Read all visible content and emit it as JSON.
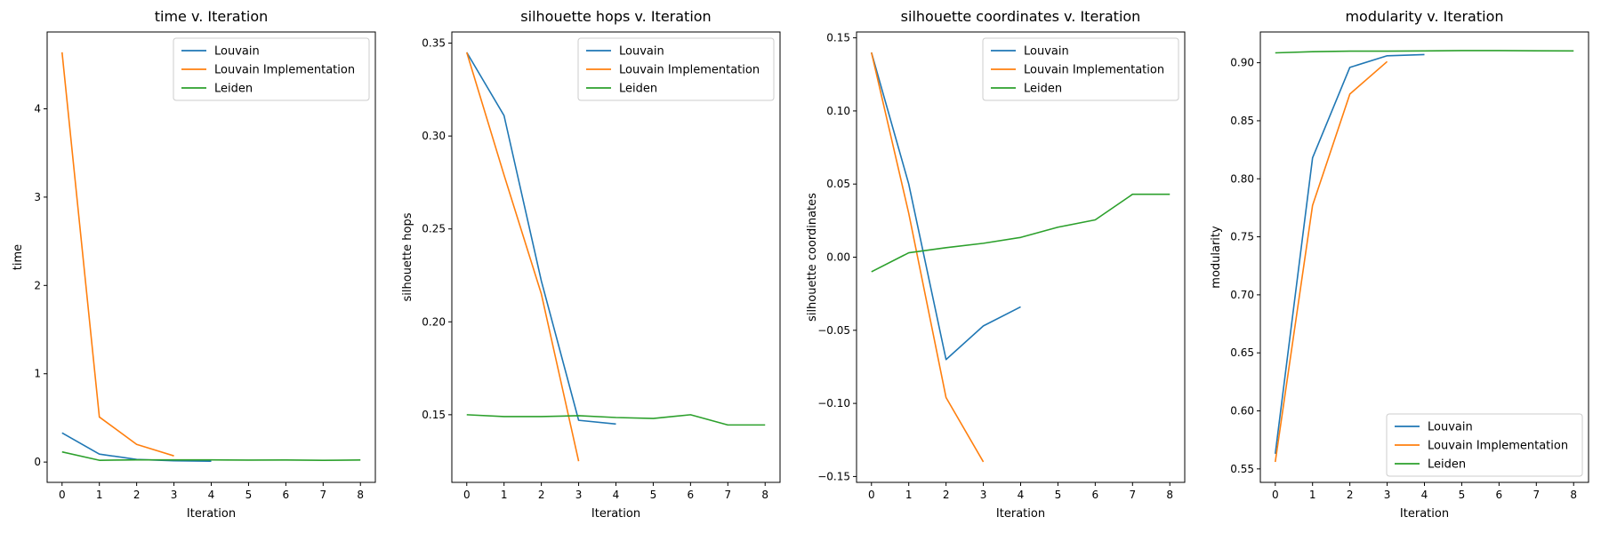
{
  "chart_data": [
    {
      "type": "line",
      "title": "time v. Iteration",
      "xlabel": "Iteration",
      "ylabel": "time",
      "xlim": [
        -0.4,
        8.4
      ],
      "ylim": [
        -0.23,
        4.87
      ],
      "xticks": [
        0,
        1,
        2,
        3,
        4,
        5,
        6,
        7,
        8
      ],
      "yticks": [
        0,
        1,
        2,
        3,
        4
      ],
      "yticklabels": [
        "0",
        "1",
        "2",
        "3",
        "4"
      ],
      "legend": "top-right",
      "series": [
        {
          "name": "Louvain",
          "color": "#1f77b4",
          "x": [
            0,
            1,
            2,
            3,
            4
          ],
          "y": [
            0.33,
            0.09,
            0.03,
            0.015,
            0.01
          ]
        },
        {
          "name": "Louvain Implementation",
          "color": "#ff7f0e",
          "x": [
            0,
            1,
            2,
            3
          ],
          "y": [
            4.64,
            0.51,
            0.2,
            0.07
          ]
        },
        {
          "name": "Leiden",
          "color": "#2ca02c",
          "x": [
            0,
            1,
            2,
            3,
            4,
            5,
            6,
            7,
            8
          ],
          "y": [
            0.115,
            0.02,
            0.025,
            0.025,
            0.025,
            0.022,
            0.023,
            0.02,
            0.023
          ]
        }
      ]
    },
    {
      "type": "line",
      "title": "silhouette hops v. Iteration",
      "xlabel": "Iteration",
      "ylabel": "silhouette hops",
      "xlim": [
        -0.4,
        8.4
      ],
      "ylim": [
        0.1136,
        0.356
      ],
      "xticks": [
        0,
        1,
        2,
        3,
        4,
        5,
        6,
        7,
        8
      ],
      "yticks": [
        0.15,
        0.2,
        0.25,
        0.3,
        0.35
      ],
      "yticklabels": [
        "0.15",
        "0.20",
        "0.25",
        "0.30",
        "0.35"
      ],
      "legend": "top-right",
      "series": [
        {
          "name": "Louvain",
          "color": "#1f77b4",
          "x": [
            0,
            1,
            2,
            3,
            4
          ],
          "y": [
            0.345,
            0.311,
            0.222,
            0.147,
            0.145
          ]
        },
        {
          "name": "Louvain Implementation",
          "color": "#ff7f0e",
          "x": [
            0,
            1,
            2,
            3
          ],
          "y": [
            0.345,
            0.279,
            0.215,
            0.125
          ]
        },
        {
          "name": "Leiden",
          "color": "#2ca02c",
          "x": [
            0,
            1,
            2,
            3,
            4,
            5,
            6,
            7,
            8
          ],
          "y": [
            0.15,
            0.149,
            0.149,
            0.1495,
            0.1485,
            0.148,
            0.15,
            0.1445,
            0.1445
          ]
        }
      ]
    },
    {
      "type": "line",
      "title": "silhouette coordinates v. Iteration",
      "xlabel": "Iteration",
      "ylabel": "silhouette coordinates",
      "xlim": [
        -0.4,
        8.4
      ],
      "ylim": [
        -0.154,
        0.154
      ],
      "xticks": [
        0,
        1,
        2,
        3,
        4,
        5,
        6,
        7,
        8
      ],
      "yticks": [
        -0.15,
        -0.1,
        -0.05,
        0,
        0.05,
        0.1,
        0.15
      ],
      "yticklabels": [
        "−0.15",
        "−0.10",
        "−0.05",
        "0.00",
        "0.05",
        "0.10",
        "0.15"
      ],
      "legend": "top-right",
      "series": [
        {
          "name": "Louvain",
          "color": "#1f77b4",
          "x": [
            0,
            1,
            2,
            3,
            4
          ],
          "y": [
            0.14,
            0.05,
            -0.07,
            -0.047,
            -0.034
          ]
        },
        {
          "name": "Louvain Implementation",
          "color": "#ff7f0e",
          "x": [
            0,
            1,
            2,
            3
          ],
          "y": [
            0.14,
            0.03,
            -0.096,
            -0.14
          ]
        },
        {
          "name": "Leiden",
          "color": "#2ca02c",
          "x": [
            0,
            1,
            2,
            3,
            4,
            5,
            6,
            7,
            8
          ],
          "y": [
            -0.01,
            0.003,
            0.0065,
            0.0095,
            0.0135,
            0.0205,
            0.0255,
            0.043,
            0.043
          ]
        }
      ]
    },
    {
      "type": "line",
      "title": "modularity v. Iteration",
      "xlabel": "Iteration",
      "ylabel": "modularity",
      "xlim": [
        -0.4,
        8.4
      ],
      "ylim": [
        0.5384,
        0.9265
      ],
      "xticks": [
        0,
        1,
        2,
        3,
        4,
        5,
        6,
        7,
        8
      ],
      "yticks": [
        0.55,
        0.6,
        0.65,
        0.7,
        0.75,
        0.8,
        0.85,
        0.9
      ],
      "yticklabels": [
        "0.55",
        "0.60",
        "0.65",
        "0.70",
        "0.75",
        "0.80",
        "0.85",
        "0.90"
      ],
      "legend": "bottom-right",
      "series": [
        {
          "name": "Louvain",
          "color": "#1f77b4",
          "x": [
            0,
            1,
            2,
            3,
            4
          ],
          "y": [
            0.563,
            0.818,
            0.896,
            0.906,
            0.907
          ]
        },
        {
          "name": "Louvain Implementation",
          "color": "#ff7f0e",
          "x": [
            0,
            1,
            2,
            3
          ],
          "y": [
            0.556,
            0.777,
            0.873,
            0.901
          ]
        },
        {
          "name": "Leiden",
          "color": "#2ca02c",
          "x": [
            0,
            1,
            2,
            3,
            4,
            5,
            6,
            7,
            8
          ],
          "y": [
            0.9085,
            0.9095,
            0.91,
            0.91,
            0.9102,
            0.9105,
            0.9105,
            0.9103,
            0.9102
          ]
        }
      ]
    }
  ]
}
